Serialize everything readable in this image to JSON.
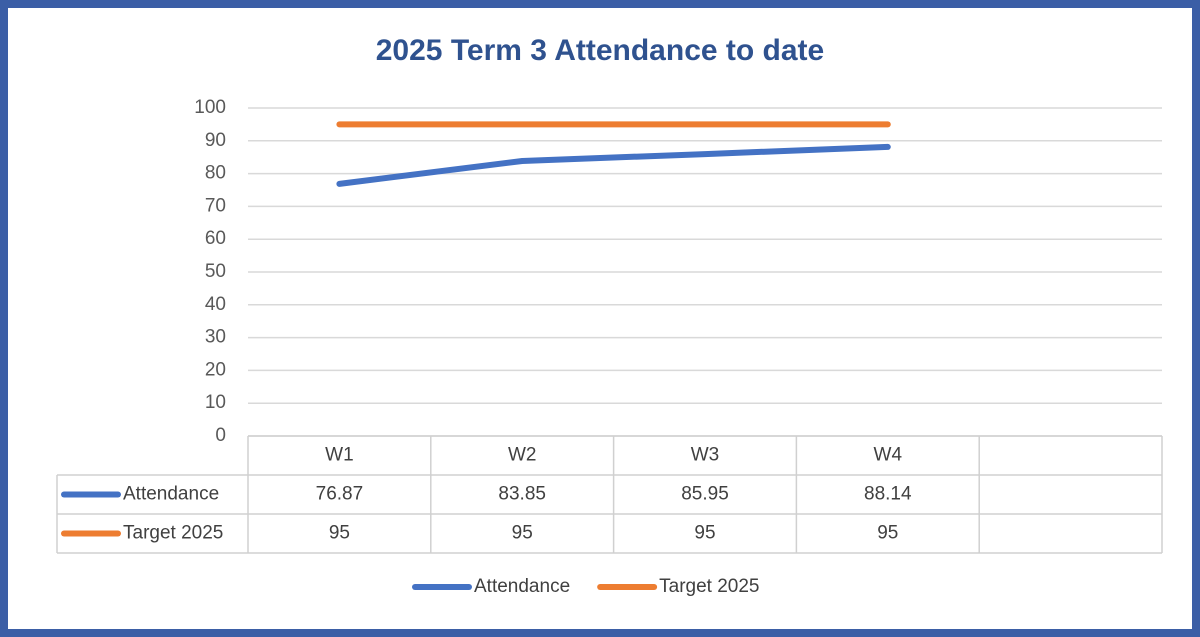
{
  "chart_data": {
    "type": "line",
    "title": "2025 Term 3 Attendance to date",
    "categories": [
      "W1",
      "W2",
      "W3",
      "W4",
      null
    ],
    "series": [
      {
        "name": "Attendance",
        "color": "#4472c4",
        "values": [
          76.87,
          83.85,
          85.95,
          88.14,
          null
        ]
      },
      {
        "name": "Target 2025",
        "color": "#ed7d31",
        "values": [
          95,
          95,
          95,
          95,
          null
        ]
      }
    ],
    "ylim": [
      0,
      100
    ],
    "yticks": [
      0,
      10,
      20,
      30,
      40,
      50,
      60,
      70,
      80,
      90,
      100
    ],
    "grid": true,
    "legend": "bottom",
    "data_table": true
  }
}
